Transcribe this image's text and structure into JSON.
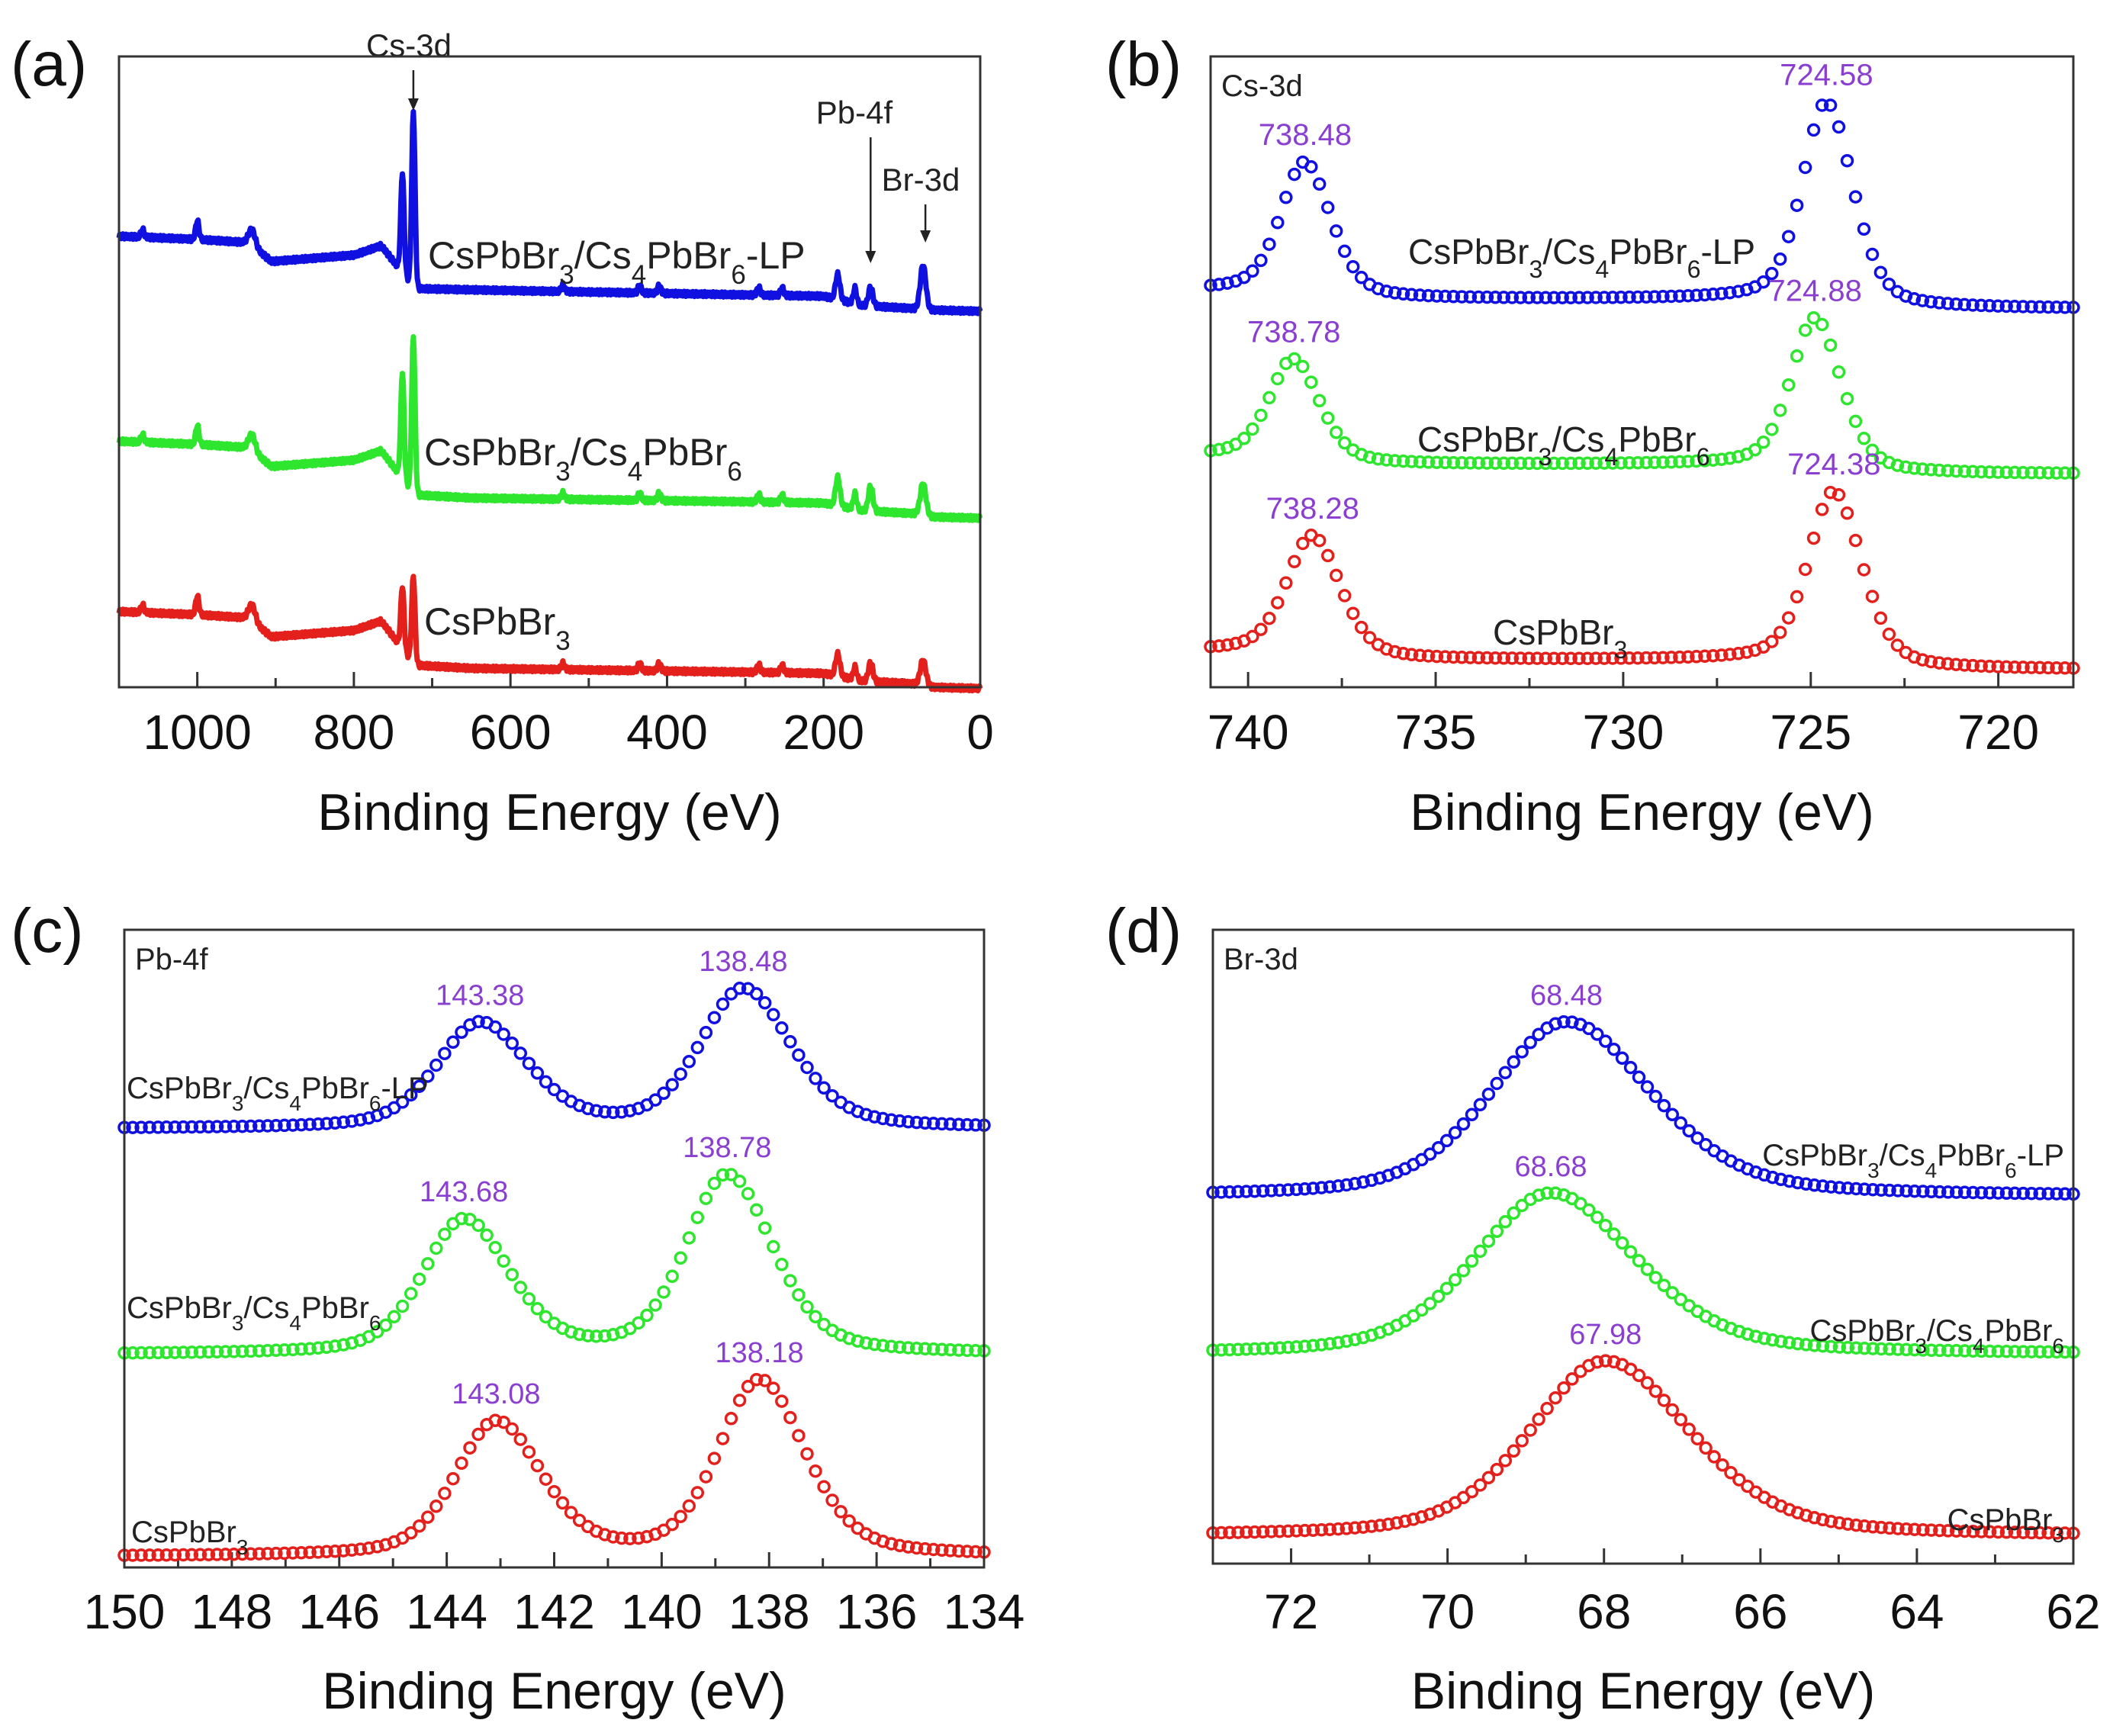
{
  "chart_data": [
    {
      "id": "a",
      "panel_label": "(a)",
      "type": "line",
      "xlabel": "Binding Energy (eV)",
      "ylabel": "",
      "xlim": [
        1100,
        0
      ],
      "ylim": [
        0,
        1
      ],
      "major_ticks": [
        1000,
        800,
        600,
        400,
        200,
        0
      ],
      "minor_step": 100,
      "annotations": [
        {
          "text": "Cs-3d",
          "x": 724
        },
        {
          "text": "Pb-4f",
          "x": 140
        },
        {
          "text": "Br-3d",
          "x": 70
        }
      ],
      "series": [
        {
          "name": "CsPbBr3/Cs4PbBr6-LP",
          "color": "#1010e0",
          "offset": 0.0,
          "baseline": [
            [
              1100,
              0.715
            ],
            [
              1000,
              0.71
            ],
            [
              935,
              0.705
            ],
            [
              905,
              0.675
            ],
            [
              800,
              0.685
            ],
            [
              765,
              0.7
            ],
            [
              722,
              0.632
            ],
            [
              650,
              0.63
            ],
            [
              300,
              0.622
            ],
            [
              200,
              0.62
            ],
            [
              150,
              0.605
            ],
            [
              80,
              0.6
            ],
            [
              60,
              0.598
            ],
            [
              0,
              0.596
            ]
          ],
          "peaks": [
            [
              1070,
              0.012,
              3
            ],
            [
              1000,
              0.03,
              3
            ],
            [
              930,
              0.025,
              6
            ],
            [
              738,
              0.16,
              3
            ],
            [
              724,
              0.28,
              3
            ],
            [
              533,
              0.01,
              3
            ],
            [
              435,
              0.012,
              3
            ],
            [
              410,
              0.012,
              3
            ],
            [
              283,
              0.012,
              3
            ],
            [
              253,
              0.012,
              3
            ],
            [
              182,
              0.04,
              4
            ],
            [
              160,
              0.025,
              3
            ],
            [
              140,
              0.03,
              4
            ],
            [
              73,
              0.07,
              5
            ]
          ]
        },
        {
          "name": "CsPbBr3/Cs4PbBr6",
          "color": "#2ee62e",
          "offset": -0.33,
          "baseline": [
            [
              1100,
              0.72
            ],
            [
              1000,
              0.715
            ],
            [
              935,
              0.71
            ],
            [
              905,
              0.68
            ],
            [
              800,
              0.69
            ],
            [
              765,
              0.705
            ],
            [
              722,
              0.635
            ],
            [
              650,
              0.63
            ],
            [
              300,
              0.624
            ],
            [
              200,
              0.622
            ],
            [
              150,
              0.61
            ],
            [
              80,
              0.605
            ],
            [
              60,
              0.6
            ],
            [
              0,
              0.598
            ]
          ],
          "peaks": [
            [
              1070,
              0.012,
              3
            ],
            [
              1000,
              0.03,
              3
            ],
            [
              930,
              0.025,
              6
            ],
            [
              738,
              0.17,
              3
            ],
            [
              724,
              0.25,
              3
            ],
            [
              533,
              0.01,
              3
            ],
            [
              435,
              0.012,
              3
            ],
            [
              410,
              0.012,
              3
            ],
            [
              283,
              0.012,
              3
            ],
            [
              253,
              0.012,
              3
            ],
            [
              182,
              0.045,
              4
            ],
            [
              160,
              0.025,
              3
            ],
            [
              140,
              0.04,
              4
            ],
            [
              73,
              0.05,
              5
            ]
          ]
        },
        {
          "name": "CsPbBr3",
          "color": "#e3201c",
          "offset": -0.6,
          "baseline": [
            [
              1100,
              0.72
            ],
            [
              1000,
              0.715
            ],
            [
              935,
              0.71
            ],
            [
              905,
              0.68
            ],
            [
              800,
              0.69
            ],
            [
              765,
              0.705
            ],
            [
              722,
              0.635
            ],
            [
              650,
              0.63
            ],
            [
              300,
              0.624
            ],
            [
              200,
              0.622
            ],
            [
              150,
              0.61
            ],
            [
              80,
              0.605
            ],
            [
              60,
              0.6
            ],
            [
              0,
              0.598
            ]
          ],
          "peaks": [
            [
              1070,
              0.012,
              3
            ],
            [
              1000,
              0.03,
              3
            ],
            [
              930,
              0.025,
              6
            ],
            [
              738,
              0.1,
              3
            ],
            [
              724,
              0.14,
              3
            ],
            [
              533,
              0.01,
              3
            ],
            [
              435,
              0.012,
              3
            ],
            [
              410,
              0.012,
              3
            ],
            [
              283,
              0.012,
              3
            ],
            [
              253,
              0.012,
              3
            ],
            [
              182,
              0.035,
              4
            ],
            [
              160,
              0.02,
              3
            ],
            [
              140,
              0.03,
              4
            ],
            [
              73,
              0.04,
              5
            ]
          ]
        }
      ]
    },
    {
      "id": "b",
      "panel_label": "(b)",
      "type": "scatter",
      "element": "Cs-3d",
      "xlabel": "Binding Energy (eV)",
      "ylabel": "",
      "xlim": [
        741,
        718
      ],
      "ylim": [
        0,
        1
      ],
      "major_ticks": [
        740,
        735,
        730,
        725,
        720
      ],
      "minor_step": 2.5,
      "series": [
        {
          "name": "CsPbBr3/Cs4PbBr6-LP",
          "color": "#1010e0",
          "baseline": 0.6,
          "tailL": 0.015,
          "peaks": [
            {
              "center": 738.48,
              "height": 0.21,
              "hwhm": 0.75,
              "label": "738.48"
            },
            {
              "center": 724.58,
              "height": 0.32,
              "hwhm": 0.75,
              "label": "724.58"
            }
          ]
        },
        {
          "name": "CsPbBr3/Cs4PbBr6",
          "color": "#2ee62e",
          "baseline": 0.338,
          "tailL": 0.015,
          "peaks": [
            {
              "center": 738.78,
              "height": 0.16,
              "hwhm": 0.75,
              "label": "738.78"
            },
            {
              "center": 724.88,
              "height": 0.24,
              "hwhm": 0.75,
              "label": "724.88"
            }
          ]
        },
        {
          "name": "CsPbBr3",
          "color": "#e3201c",
          "baseline": 0.028,
          "tailL": 0.015,
          "peaks": [
            {
              "center": 738.28,
              "height": 0.19,
              "hwhm": 0.8,
              "label": "738.28"
            },
            {
              "center": 724.38,
              "height": 0.275,
              "hwhm": 0.8,
              "label": "724.38"
            }
          ]
        }
      ]
    },
    {
      "id": "c",
      "panel_label": "(c)",
      "type": "scatter",
      "element": "Pb-4f",
      "xlabel": "Binding Energy (eV)",
      "ylabel": "",
      "xlim": [
        150,
        134
      ],
      "ylim": [
        0,
        1
      ],
      "major_ticks": [
        150,
        148,
        146,
        144,
        142,
        140,
        138,
        136,
        134
      ],
      "minor_step": 1,
      "series": [
        {
          "name": "CsPbBr3/Cs4PbBr6-LP",
          "color": "#1010e0",
          "baseline": 0.688,
          "tailL": 0.0,
          "peaks": [
            {
              "center": 143.38,
              "height": 0.165,
              "hwhm": 0.95,
              "label": "143.38"
            },
            {
              "center": 138.48,
              "height": 0.218,
              "hwhm": 0.95,
              "label": "138.48"
            }
          ]
        },
        {
          "name": "CsPbBr3/Cs4PbBr6",
          "color": "#2ee62e",
          "baseline": 0.334,
          "tailL": 0.0,
          "peaks": [
            {
              "center": 143.68,
              "height": 0.21,
              "hwhm": 0.9,
              "label": "143.68"
            },
            {
              "center": 138.78,
              "height": 0.28,
              "hwhm": 0.9,
              "label": "138.78"
            }
          ]
        },
        {
          "name": "CsPbBr3",
          "color": "#e3201c",
          "baseline": 0.017,
          "tailL": 0.0,
          "peaks": [
            {
              "center": 143.08,
              "height": 0.21,
              "hwhm": 0.9,
              "label": "143.08"
            },
            {
              "center": 138.18,
              "height": 0.275,
              "hwhm": 0.9,
              "label": "138.18"
            }
          ]
        }
      ]
    },
    {
      "id": "d",
      "panel_label": "(d)",
      "type": "scatter",
      "element": "Br-3d",
      "xlabel": "Binding Energy (eV)",
      "ylabel": "",
      "xlim": [
        73,
        62
      ],
      "ylim": [
        0,
        1
      ],
      "major_ticks": [
        72,
        70,
        68,
        66,
        64,
        62
      ],
      "minor_step": 1,
      "series": [
        {
          "name": "CsPbBr3/Cs4PbBr6-LP",
          "color": "#1010e0",
          "baseline": 0.579,
          "tailL": 0.0,
          "peaks": [
            {
              "center": 68.48,
              "height": 0.276,
              "hwhm": 1.15,
              "label": "68.48"
            }
          ]
        },
        {
          "name": "CsPbBr3/Cs4PbBr6",
          "color": "#2ee62e",
          "baseline": 0.33,
          "tailL": 0.0,
          "peaks": [
            {
              "center": 68.68,
              "height": 0.255,
              "hwhm": 1.15,
              "label": "68.68"
            }
          ]
        },
        {
          "name": "CsPbBr3",
          "color": "#e3201c",
          "baseline": 0.043,
          "tailL": 0.0,
          "peaks": [
            {
              "center": 67.98,
              "height": 0.277,
              "hwhm": 1.15,
              "label": "67.98"
            }
          ]
        }
      ]
    }
  ]
}
